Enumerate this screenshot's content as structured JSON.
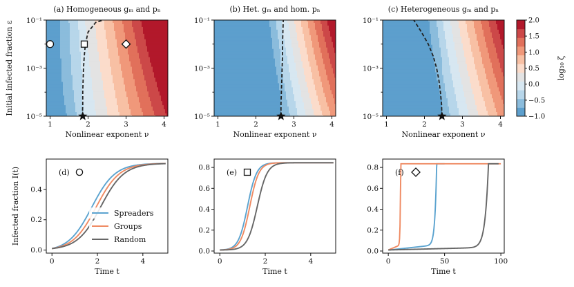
{
  "figure": {
    "colors": {
      "spreaders": "#5ba3cf",
      "groups": "#ef8a62",
      "random": "#666666",
      "boundary": "#222222",
      "colormap": [
        "#5d9fcd",
        "#8bbcdc",
        "#b7d6ea",
        "#d7e7f1",
        "#e3e3e3",
        "#fbdccb",
        "#f8c0a4",
        "#f0987a",
        "#e1705b",
        "#cc4848",
        "#b2182b"
      ]
    },
    "colorbar": {
      "label": "log₁₀ ζ",
      "min": -1.0,
      "max": 2.0,
      "ticks": [
        "2.0",
        "1.5",
        "1.0",
        "0.5",
        "0.0",
        "−0.5",
        "−1.0"
      ]
    },
    "legend": [
      "Spreaders",
      "Groups",
      "Random"
    ]
  },
  "chart_data": [
    {
      "id": "a",
      "type": "heatmap",
      "title": "(a) Homogeneous gₘ and pₙ",
      "xlabel": "Nonlinear exponent ν",
      "ylabel": "Initial infected fraction ε",
      "x_ticks": [
        "1",
        "2",
        "3",
        "4"
      ],
      "y_ticks": [
        "10⁻¹",
        "10⁻³",
        "10⁻⁵"
      ],
      "x_range": [
        0.9,
        4.1
      ],
      "y_log_range": [
        -5,
        -1
      ],
      "z_model": {
        "a0": -0.22,
        "a1": 0.06,
        "k": 1.0,
        "cx": 1.86,
        "scale": 0.88,
        "qa": 0.07,
        "qb": 0.08,
        "qc": 0.28
      },
      "critical_curve": [
        [
          1.85,
          -5
        ],
        [
          1.86,
          -4.5
        ],
        [
          1.86,
          -4
        ],
        [
          1.87,
          -3.5
        ],
        [
          1.88,
          -3
        ],
        [
          1.9,
          -2.5
        ],
        [
          1.93,
          -2
        ],
        [
          2.0,
          -1.5
        ],
        [
          2.2,
          -1.1
        ],
        [
          2.4,
          -1
        ]
      ],
      "star": [
        1.86,
        -5
      ],
      "markers": [
        {
          "shape": "circle",
          "nu": 1.0,
          "log_eps": -2.0
        },
        {
          "shape": "square",
          "nu": 1.9,
          "log_eps": -2.0
        },
        {
          "shape": "diamond",
          "nu": 3.0,
          "log_eps": -2.0
        }
      ]
    },
    {
      "id": "b",
      "type": "heatmap",
      "title": "(b) Het. gₘ and hom. pₙ",
      "xlabel": "Nonlinear exponent ν",
      "ylabel": "",
      "x_ticks": [
        "1",
        "2",
        "3",
        "4"
      ],
      "y_ticks": [
        "10⁻¹",
        "10⁻³",
        "10⁻⁵"
      ],
      "x_range": [
        0.9,
        4.1
      ],
      "y_log_range": [
        -5,
        -1
      ],
      "z_model": {
        "a0": -0.75,
        "a1": 0.14,
        "k": 1.4,
        "cx": 2.66,
        "scale": 0.9,
        "qa": 0.2,
        "qb": 0.05,
        "qc": 0.5
      },
      "critical_curve": [
        [
          2.66,
          -5
        ],
        [
          2.66,
          -4.5
        ],
        [
          2.67,
          -4
        ],
        [
          2.68,
          -3.5
        ],
        [
          2.69,
          -3
        ],
        [
          2.7,
          -2.5
        ],
        [
          2.7,
          -2
        ],
        [
          2.71,
          -1.5
        ],
        [
          2.72,
          -1
        ]
      ],
      "star": [
        2.66,
        -5
      ]
    },
    {
      "id": "c",
      "type": "heatmap",
      "title": "(c) Heterogeneous gₘ and pₙ",
      "xlabel": "Nonlinear exponent ν",
      "ylabel": "",
      "x_ticks": [
        "1",
        "2",
        "3",
        "4"
      ],
      "y_ticks": [
        "10⁻¹",
        "10⁻³",
        "10⁻⁵"
      ],
      "x_range": [
        0.9,
        4.1
      ],
      "y_log_range": [
        -5,
        -1
      ],
      "z_model": {
        "a0": -0.7,
        "a1": 0.12,
        "k": 1.2,
        "cx": 2.45,
        "scale": 0.9,
        "qa": 0.18,
        "qb": 0.05,
        "qc": 0.45
      },
      "critical_curve": [
        [
          2.46,
          -5
        ],
        [
          2.45,
          -4.5
        ],
        [
          2.42,
          -4
        ],
        [
          2.38,
          -3.5
        ],
        [
          2.32,
          -3
        ],
        [
          2.23,
          -2.5
        ],
        [
          2.1,
          -2
        ],
        [
          1.92,
          -1.5
        ],
        [
          1.72,
          -1
        ]
      ],
      "star": [
        2.46,
        -5
      ],
      "colorbar": true
    },
    {
      "id": "d",
      "type": "line",
      "label": "(d)",
      "marker": "circle",
      "xlabel": "Time t",
      "ylabel": "Infected fraction I(t)",
      "xlim": [
        -0.25,
        5.1
      ],
      "ylim": [
        -0.02,
        0.6
      ],
      "x_ticks": [
        0,
        2,
        4
      ],
      "y_ticks": [
        0.0,
        0.2,
        0.4
      ],
      "x_tick_labels": [
        "0",
        "2",
        "4"
      ],
      "y_tick_labels": [
        "0.0",
        "0.2",
        "0.4"
      ],
      "series": [
        {
          "name": "Spreaders",
          "curve": {
            "type": "logistic",
            "y0": 0.01,
            "ymax": 0.572,
            "t0": 1.75,
            "k": 1.95,
            "t_end": 5.0
          }
        },
        {
          "name": "Groups",
          "curve": {
            "type": "logistic",
            "y0": 0.01,
            "ymax": 0.572,
            "t0": 1.95,
            "k": 1.95,
            "t_end": 5.0
          }
        },
        {
          "name": "Random",
          "curve": {
            "type": "logistic",
            "y0": 0.01,
            "ymax": 0.572,
            "t0": 2.15,
            "k": 1.95,
            "t_end": 5.0
          }
        }
      ]
    },
    {
      "id": "e",
      "type": "line",
      "label": "(e)",
      "marker": "square",
      "xlabel": "Time t",
      "ylabel": "",
      "xlim": [
        -0.25,
        5.1
      ],
      "ylim": [
        -0.02,
        0.88
      ],
      "x_ticks": [
        0,
        2,
        4
      ],
      "y_ticks": [
        0.0,
        0.2,
        0.4,
        0.6,
        0.8
      ],
      "x_tick_labels": [
        "0",
        "2",
        "4"
      ],
      "y_tick_labels": [
        "0.0",
        "0.2",
        "0.4",
        "0.6",
        "0.8"
      ],
      "series": [
        {
          "name": "Spreaders",
          "curve": {
            "type": "logistic",
            "y0": 0.01,
            "ymax": 0.845,
            "t0": 1.22,
            "k": 5.0,
            "t_end": 5.0
          }
        },
        {
          "name": "Groups",
          "curve": {
            "type": "logistic",
            "y0": 0.01,
            "ymax": 0.845,
            "t0": 1.32,
            "k": 5.0,
            "t_end": 5.0
          }
        },
        {
          "name": "Random",
          "curve": {
            "type": "logistic",
            "y0": 0.01,
            "ymax": 0.845,
            "t0": 1.65,
            "k": 4.6,
            "t_end": 5.0
          }
        }
      ]
    },
    {
      "id": "f",
      "type": "line",
      "label": "(f)",
      "marker": "diamond",
      "xlabel": "Time t",
      "ylabel": "",
      "xlim": [
        -5,
        103
      ],
      "ylim": [
        -0.02,
        0.88
      ],
      "x_ticks": [
        0,
        50,
        100
      ],
      "y_ticks": [
        0.0,
        0.2,
        0.4,
        0.6,
        0.8
      ],
      "x_tick_labels": [
        "0",
        "50",
        "100"
      ],
      "y_tick_labels": [
        "0.0",
        "0.2",
        "0.4",
        "0.6",
        "0.8"
      ],
      "series": [
        {
          "name": "Spreaders",
          "curve": {
            "type": "explosive",
            "y0": 0.01,
            "ymax": 0.835,
            "t0": 1,
            "tc": 43,
            "t_end": 50,
            "p": 2.2,
            "slow": 0.06
          }
        },
        {
          "name": "Groups",
          "curve": {
            "type": "explosive",
            "y0": 0.01,
            "ymax": 0.835,
            "t0": 0,
            "tc": 11,
            "t_end": 100,
            "p": 2.2,
            "slow": 0.06
          }
        },
        {
          "name": "Random",
          "curve": {
            "type": "explosive",
            "y0": 0.01,
            "ymax": 0.835,
            "t0": 0,
            "tc": 89,
            "t_end": 98,
            "p": 2.5,
            "slow": 0.03
          }
        }
      ]
    }
  ]
}
